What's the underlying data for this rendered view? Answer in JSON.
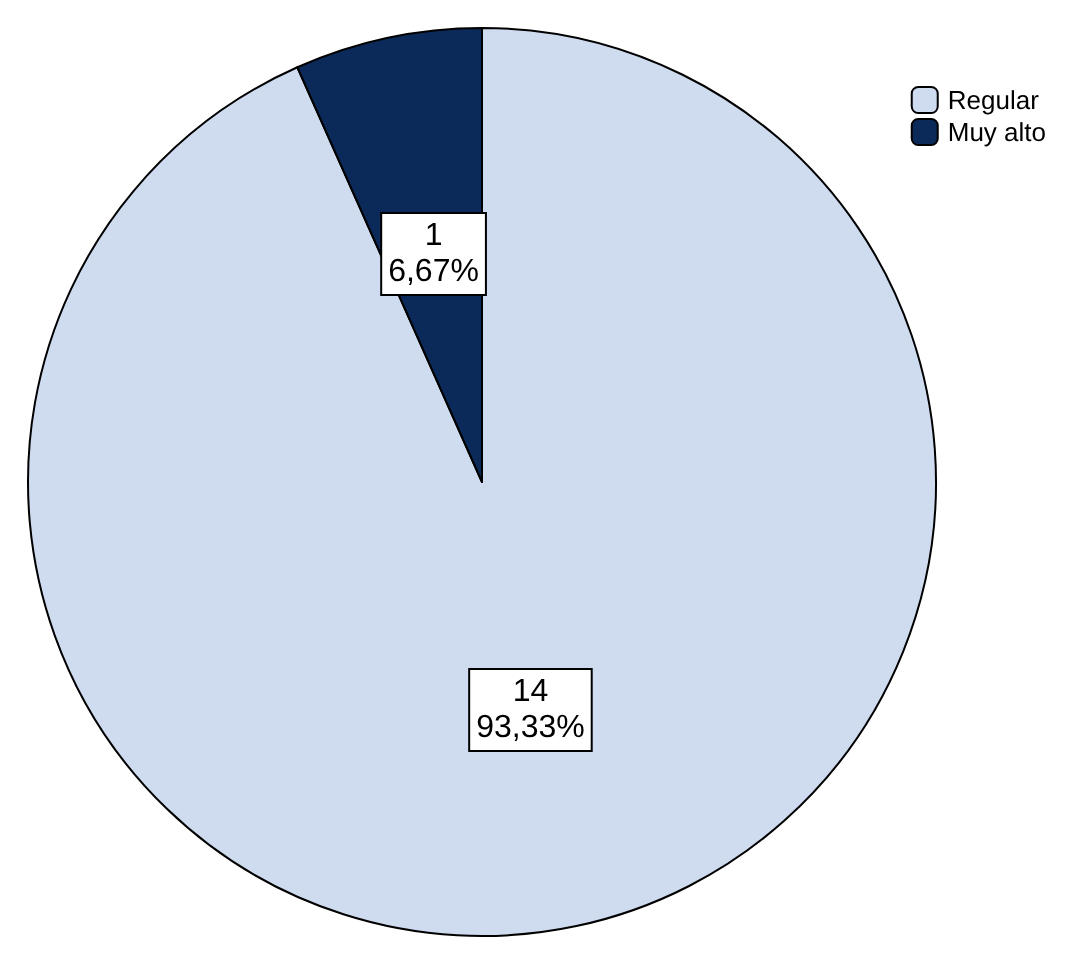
{
  "chart_data": {
    "type": "pie",
    "categories": [
      "Regular",
      "Muy alto"
    ],
    "values": [
      14,
      1
    ],
    "colors": [
      "#cfdcf0",
      "#0b2a5a"
    ],
    "value_labels": [
      "14\n93,33%",
      "1\n6,67%"
    ],
    "legend": "top right"
  }
}
